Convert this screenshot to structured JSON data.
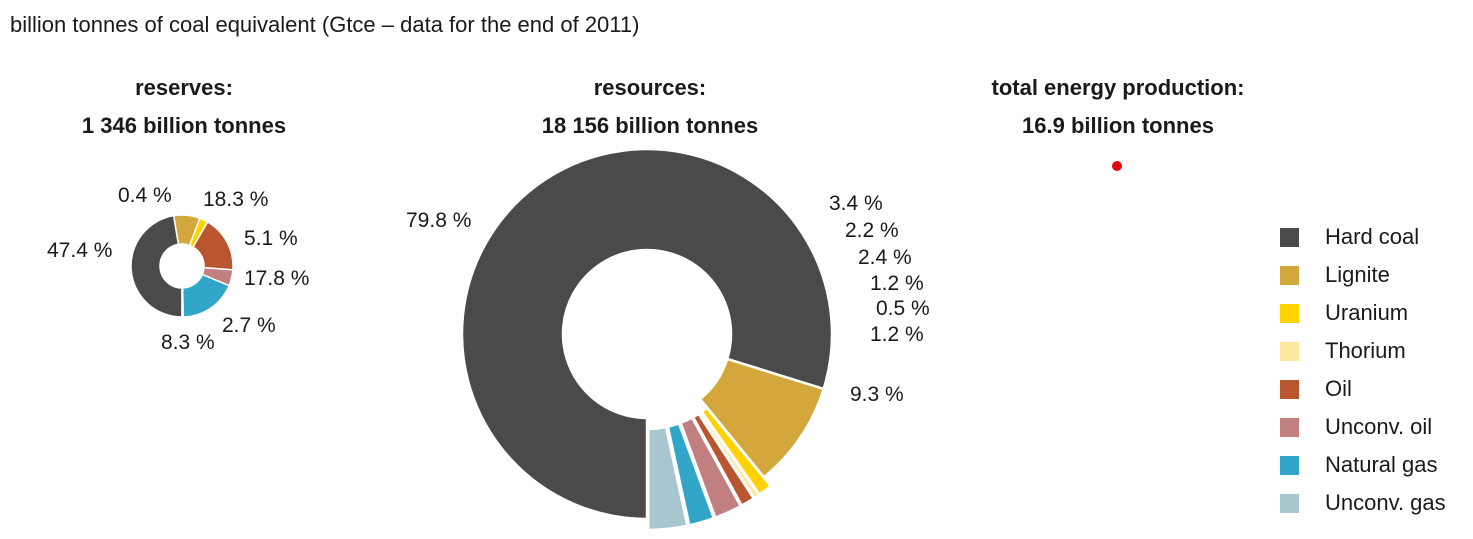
{
  "chart_data": {
    "type": "donut",
    "subtitle": "billion tonnes of coal equivalent (Gtce – data for the end of 2011)",
    "legend": {
      "placement": "right",
      "entries": [
        {
          "name": "Hard coal",
          "color": "#4a4a4a"
        },
        {
          "name": "Lignite",
          "color": "#d4a73c"
        },
        {
          "name": "Uranium",
          "color": "#ffd200"
        },
        {
          "name": "Thorium",
          "color": "#ffe9a1"
        },
        {
          "name": "Oil",
          "color": "#b9552f"
        },
        {
          "name": "Unconv. oil",
          "color": "#c17f7f"
        },
        {
          "name": "Natural gas",
          "color": "#32a6c8"
        },
        {
          "name": "Unconv. gas",
          "color": "#a8c6cf"
        }
      ]
    },
    "charts": [
      {
        "id": "reserves",
        "title": "reserves:",
        "total": "1 346 billion tonnes",
        "slices": [
          {
            "name": "Hard coal",
            "value": 47.4,
            "label": "47.4 %"
          },
          {
            "name": "Lignite",
            "value": 8.3,
            "label": "8.3 %"
          },
          {
            "name": "Uranium",
            "value": 2.7,
            "label": "2.7 %"
          },
          {
            "name": "Oil",
            "value": 17.8,
            "label": "17.8 %"
          },
          {
            "name": "Unconv. oil",
            "value": 5.1,
            "label": "5.1 %"
          },
          {
            "name": "Natural gas",
            "value": 18.3,
            "label": "18.3 %"
          },
          {
            "name": "Unconv. gas",
            "value": 0.4,
            "label": "0.4 %"
          }
        ]
      },
      {
        "id": "resources",
        "title": "resources:",
        "total": "18 156 billion tonnes",
        "slices": [
          {
            "name": "Hard coal",
            "value": 79.8,
            "label": "79.8 %"
          },
          {
            "name": "Lignite",
            "value": 9.3,
            "label": "9.3 %"
          },
          {
            "name": "Uranium",
            "value": 1.2,
            "label": "1.2 %"
          },
          {
            "name": "Thorium",
            "value": 0.5,
            "label": "0.5 %"
          },
          {
            "name": "Oil",
            "value": 1.2,
            "label": "1.2 %"
          },
          {
            "name": "Unconv. oil",
            "value": 2.4,
            "label": "2.4 %"
          },
          {
            "name": "Natural gas",
            "value": 2.2,
            "label": "2.2 %"
          },
          {
            "name": "Unconv. gas",
            "value": 3.4,
            "label": "3.4 %"
          }
        ]
      },
      {
        "id": "production",
        "title": "total energy production:",
        "total": "16.9 billion tonnes",
        "marker_color": "#e30613"
      }
    ]
  }
}
